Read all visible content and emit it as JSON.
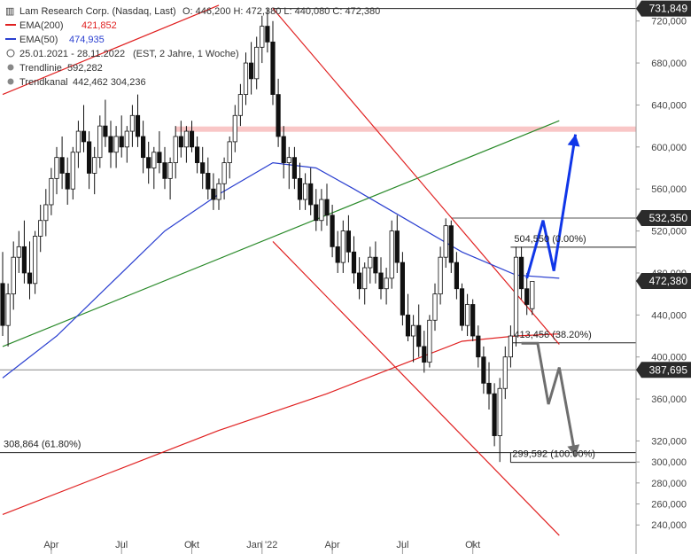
{
  "legend": {
    "title": "Lam Research Corp. (Nasdaq, Last)",
    "ohlc": "O: 446,200  H: 472,380  L: 440,080  C: 472,380",
    "ema200_label": "EMA(200)",
    "ema200_value": "421,852",
    "ema50_label": "EMA(50)",
    "ema50_value": "474,935",
    "period": "25.01.2021 - 28.11.2022",
    "period_info": "(EST, 2 Jahre, 1 Woche)",
    "trendline_label": "Trendlinie",
    "trendline_value": "592,282",
    "trendchannel_label": "Trendkanal",
    "trendchannel_value": "442,462  304,236",
    "colors": {
      "ema200": "#e02020",
      "ema50": "#2a3fd0",
      "trendline": "#2a8a2a",
      "channel": "#e02020"
    }
  },
  "right_boxes": [
    {
      "label": "731,849",
      "value": 731.849,
      "bg": "#2b2b2b"
    },
    {
      "label": "532,350",
      "value": 532.35,
      "bg": "#2b2b2b"
    },
    {
      "label": "472,380",
      "value": 472.38,
      "bg": "#2b2b2b"
    },
    {
      "label": "387,695",
      "value": 387.695,
      "bg": "#2b2b2b"
    }
  ],
  "fib_labels": [
    {
      "label": "504,550 (0.00%)",
      "value": 504.55
    },
    {
      "label": "413,456 (38.20%)",
      "value": 413.456
    },
    {
      "label": "308,864 (61.80%)",
      "value": 308.864
    },
    {
      "label": "299,592 (100.00%)",
      "value": 299.592
    }
  ],
  "chart_data": {
    "type": "candlestick",
    "title": "Lam Research Corp. (Nasdaq, Last)",
    "y_ticks": [
      "240,000",
      "260,000",
      "280,000",
      "300,000",
      "320,000",
      "360,000",
      "400,000",
      "440,000",
      "480,000",
      "520,000",
      "560,000",
      "600,000",
      "640,000",
      "680,000",
      "720,000"
    ],
    "y_tick_values": [
      240,
      260,
      280,
      300,
      320,
      360,
      400,
      440,
      480,
      520,
      560,
      600,
      640,
      680,
      720
    ],
    "x_ticks": [
      "Apr",
      "Jul",
      "Okt",
      "Jan '22",
      "Apr",
      "Jul",
      "Okt"
    ],
    "ylim": [
      225,
      740
    ],
    "candles": [
      [
        470,
        500,
        420,
        430
      ],
      [
        430,
        470,
        410,
        460
      ],
      [
        460,
        510,
        445,
        495
      ],
      [
        495,
        520,
        480,
        505
      ],
      [
        505,
        530,
        470,
        480
      ],
      [
        480,
        510,
        455,
        470
      ],
      [
        470,
        520,
        460,
        515
      ],
      [
        515,
        545,
        500,
        530
      ],
      [
        530,
        560,
        515,
        545
      ],
      [
        545,
        580,
        535,
        570
      ],
      [
        570,
        600,
        555,
        590
      ],
      [
        590,
        610,
        560,
        575
      ],
      [
        575,
        590,
        545,
        560
      ],
      [
        560,
        600,
        550,
        595
      ],
      [
        595,
        625,
        580,
        615
      ],
      [
        615,
        640,
        595,
        605
      ],
      [
        605,
        615,
        560,
        575
      ],
      [
        575,
        600,
        555,
        590
      ],
      [
        590,
        630,
        580,
        620
      ],
      [
        620,
        645,
        600,
        610
      ],
      [
        610,
        625,
        580,
        595
      ],
      [
        595,
        620,
        580,
        610
      ],
      [
        610,
        630,
        590,
        600
      ],
      [
        600,
        620,
        585,
        615
      ],
      [
        615,
        640,
        600,
        630
      ],
      [
        630,
        650,
        600,
        610
      ],
      [
        610,
        625,
        575,
        590
      ],
      [
        590,
        605,
        565,
        580
      ],
      [
        580,
        600,
        560,
        595
      ],
      [
        595,
        615,
        575,
        585
      ],
      [
        585,
        600,
        560,
        570
      ],
      [
        570,
        590,
        550,
        585
      ],
      [
        585,
        620,
        570,
        610
      ],
      [
        610,
        625,
        590,
        600
      ],
      [
        600,
        620,
        585,
        615
      ],
      [
        615,
        625,
        595,
        600
      ],
      [
        600,
        610,
        575,
        585
      ],
      [
        585,
        600,
        560,
        575
      ],
      [
        575,
        590,
        550,
        560
      ],
      [
        560,
        575,
        540,
        550
      ],
      [
        550,
        570,
        540,
        565
      ],
      [
        565,
        590,
        550,
        585
      ],
      [
        585,
        610,
        570,
        605
      ],
      [
        605,
        640,
        595,
        630
      ],
      [
        630,
        660,
        620,
        650
      ],
      [
        650,
        690,
        640,
        680
      ],
      [
        680,
        700,
        650,
        665
      ],
      [
        665,
        705,
        655,
        695
      ],
      [
        695,
        725,
        680,
        715
      ],
      [
        715,
        732,
        690,
        700
      ],
      [
        700,
        720,
        640,
        650
      ],
      [
        650,
        665,
        600,
        610
      ],
      [
        610,
        620,
        570,
        585
      ],
      [
        585,
        600,
        560,
        590
      ],
      [
        590,
        600,
        560,
        570
      ],
      [
        570,
        585,
        540,
        550
      ],
      [
        550,
        575,
        540,
        565
      ],
      [
        565,
        580,
        535,
        545
      ],
      [
        545,
        560,
        520,
        530
      ],
      [
        530,
        560,
        520,
        550
      ],
      [
        550,
        565,
        525,
        535
      ],
      [
        535,
        545,
        495,
        505
      ],
      [
        505,
        520,
        480,
        490
      ],
      [
        490,
        530,
        480,
        520
      ],
      [
        520,
        535,
        490,
        500
      ],
      [
        500,
        515,
        470,
        480
      ],
      [
        480,
        495,
        455,
        465
      ],
      [
        465,
        490,
        450,
        485
      ],
      [
        485,
        505,
        470,
        495
      ],
      [
        495,
        510,
        470,
        480
      ],
      [
        480,
        495,
        455,
        465
      ],
      [
        465,
        485,
        450,
        475
      ],
      [
        475,
        530,
        465,
        520
      ],
      [
        520,
        535,
        480,
        490
      ],
      [
        490,
        500,
        430,
        440
      ],
      [
        440,
        460,
        415,
        420
      ],
      [
        420,
        440,
        395,
        430
      ],
      [
        430,
        450,
        400,
        410
      ],
      [
        410,
        425,
        385,
        395
      ],
      [
        395,
        440,
        390,
        435
      ],
      [
        435,
        470,
        425,
        460
      ],
      [
        460,
        505,
        450,
        495
      ],
      [
        495,
        532,
        485,
        525
      ],
      [
        525,
        530,
        480,
        490
      ],
      [
        490,
        500,
        455,
        465
      ],
      [
        465,
        470,
        425,
        430
      ],
      [
        430,
        460,
        420,
        450
      ],
      [
        450,
        455,
        415,
        420
      ],
      [
        420,
        430,
        390,
        400
      ],
      [
        400,
        410,
        365,
        375
      ],
      [
        375,
        395,
        350,
        365
      ],
      [
        365,
        375,
        315,
        325
      ],
      [
        325,
        380,
        300,
        370
      ],
      [
        370,
        410,
        360,
        400
      ],
      [
        400,
        430,
        390,
        420
      ],
      [
        420,
        505,
        410,
        495
      ],
      [
        495,
        505,
        455,
        465
      ],
      [
        465,
        480,
        440,
        450
      ],
      [
        446,
        472,
        440,
        472
      ]
    ],
    "ema200": [
      [
        0,
        250
      ],
      [
        20,
        290
      ],
      [
        40,
        330
      ],
      [
        60,
        365
      ],
      [
        75,
        395
      ],
      [
        85,
        415
      ],
      [
        95,
        420
      ],
      [
        103,
        422
      ]
    ],
    "ema50": [
      [
        0,
        380
      ],
      [
        10,
        420
      ],
      [
        20,
        470
      ],
      [
        30,
        520
      ],
      [
        40,
        555
      ],
      [
        50,
        585
      ],
      [
        58,
        580
      ],
      [
        65,
        560
      ],
      [
        75,
        530
      ],
      [
        85,
        500
      ],
      [
        95,
        478
      ],
      [
        103,
        475
      ]
    ],
    "trendline_green": [
      [
        0,
        410
      ],
      [
        103,
        625
      ]
    ],
    "channel_upper": [
      [
        50,
        732
      ],
      [
        103,
        412
      ]
    ],
    "channel_lower": [
      [
        50,
        510
      ],
      [
        103,
        230
      ]
    ],
    "channel_top_red": [
      [
        0,
        650
      ],
      [
        40,
        735
      ]
    ],
    "resistance_band": 617,
    "projections": {
      "blue": [
        [
          97,
          475
        ],
        [
          100,
          530
        ],
        [
          102,
          482
        ],
        [
          106,
          612
        ]
      ],
      "grey": [
        [
          96,
          413
        ],
        [
          99,
          413
        ],
        [
          101,
          355
        ],
        [
          103,
          390
        ],
        [
          106,
          305
        ]
      ]
    }
  }
}
